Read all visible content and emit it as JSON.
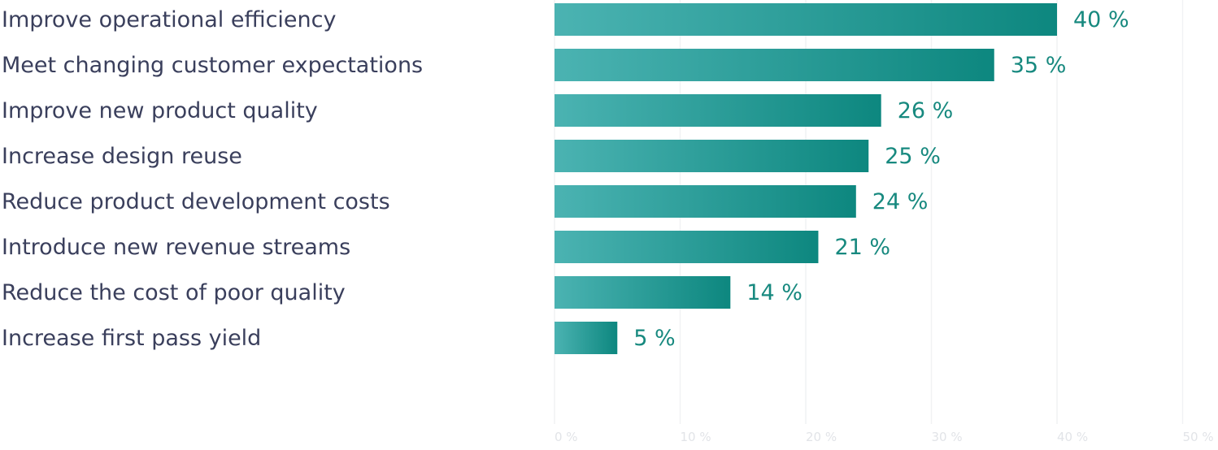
{
  "chart_data": {
    "type": "bar",
    "orientation": "horizontal",
    "categories": [
      "Improve operational efficiency",
      "Meet changing customer expectations",
      "Improve new product quality",
      "Increase design reuse",
      "Reduce product development costs",
      "Introduce new revenue streams",
      "Reduce the cost of poor quality",
      "Increase first pass yield"
    ],
    "values": [
      40,
      35,
      26,
      25,
      24,
      21,
      14,
      5
    ],
    "value_labels": [
      "40 %",
      "35 %",
      "26 %",
      "25 %",
      "24 %",
      "21 %",
      "14 %",
      "5 %"
    ],
    "xlim": [
      0,
      50
    ],
    "ticks": [
      0,
      10,
      20,
      30,
      40,
      50
    ],
    "tick_labels": [
      "0 %",
      "10 %",
      "20 %",
      "30 %",
      "40 %",
      "50 %"
    ],
    "grid": true,
    "colors": {
      "bar_start": "#4bb3b2",
      "bar_end": "#0d877f",
      "value_text": "#17897f",
      "category_text": "#3a3f5c"
    }
  }
}
